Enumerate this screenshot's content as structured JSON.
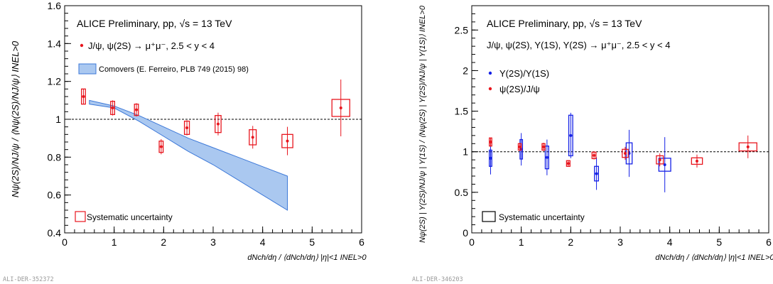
{
  "panels": [
    {
      "id": "left",
      "header": "ALICE Preliminary, pp, √s = 13 TeV",
      "process": "J/ψ, ψ(2S) → μ⁺μ⁻, 2.5 < y < 4",
      "ylabel": "Nψ(2S)/NJ/ψ / ⟨Nψ(2S)/NJ/ψ⟩ INEL>0",
      "xlabel": "dNch/dη / ⟨dNch/dη⟩ |η|<1 INEL>0",
      "legend_syst": "Systematic uncertainty",
      "legend_model": "Comovers (E. Ferreiro, PLB 749 (2015) 98)",
      "watermark": "ALI-DER-352372",
      "series_label": "J/ψ, ψ(2S) → μ⁺μ⁻, 2.5 < y < 4"
    },
    {
      "id": "right",
      "header": "ALICE Preliminary, pp, √s = 13 TeV",
      "process": "J/ψ, ψ(2S), Υ(1S), Υ(2S) → μ⁺μ⁻, 2.5 < y < 4",
      "ylabel": "Nψ(2S) | Υ(2S)/NJ/ψ | Υ(1S) / ⟨Nψ(2S) | Υ(2S)/NJ/ψ | Υ(1S)⟩ INEL>0",
      "xlabel": "dNch/dη / ⟨dNch/dη⟩ |η|<1 INEL>0",
      "legend_syst": "Systematic uncertainty",
      "legend_series": [
        "Υ(2S)/Υ(1S)",
        "ψ(2S)/J/ψ"
      ],
      "watermark": "ALI-DER-346203"
    }
  ],
  "chart_data": [
    {
      "type": "scatter",
      "xlim": [
        0,
        6
      ],
      "ylim": [
        0.4,
        1.6
      ],
      "xticks": [
        0,
        1,
        2,
        3,
        4,
        5,
        6
      ],
      "yticks": [
        0.4,
        0.6,
        0.8,
        1,
        1.2,
        1.4,
        1.6
      ],
      "reference_line": 1,
      "series": [
        {
          "name": "J/ψ, ψ(2S) → μ⁺μ⁻, 2.5 < y < 4",
          "color": "#e8161e",
          "points": [
            {
              "x": 0.38,
              "y": 1.12,
              "stat": 0.04,
              "sys": 0.04,
              "bw": 0.08
            },
            {
              "x": 0.97,
              "y": 1.06,
              "stat": 0.04,
              "sys": 0.035,
              "bw": 0.08
            },
            {
              "x": 1.45,
              "y": 1.05,
              "stat": 0.035,
              "sys": 0.03,
              "bw": 0.08
            },
            {
              "x": 1.95,
              "y": 0.855,
              "stat": 0.04,
              "sys": 0.03,
              "bw": 0.08
            },
            {
              "x": 2.47,
              "y": 0.955,
              "stat": 0.04,
              "sys": 0.035,
              "bw": 0.1
            },
            {
              "x": 3.1,
              "y": 0.975,
              "stat": 0.06,
              "sys": 0.045,
              "bw": 0.12
            },
            {
              "x": 3.8,
              "y": 0.905,
              "stat": 0.06,
              "sys": 0.04,
              "bw": 0.14
            },
            {
              "x": 4.5,
              "y": 0.885,
              "stat": 0.075,
              "sys": 0.035,
              "bw": 0.22
            },
            {
              "x": 5.58,
              "y": 1.06,
              "stat": 0.15,
              "sys": 0.045,
              "bw": 0.36
            }
          ]
        }
      ],
      "band": {
        "name": "Comovers (E. Ferreiro, PLB 749 (2015) 98)",
        "color": "#aac8f0",
        "edge": "#3c78d8",
        "x": [
          0.5,
          1.0,
          1.5,
          2.0,
          2.5,
          3.0,
          3.5,
          4.0,
          4.5
        ],
        "upper": [
          1.1,
          1.07,
          1.02,
          0.96,
          0.9,
          0.85,
          0.8,
          0.75,
          0.7
        ],
        "lower": [
          1.08,
          1.06,
          0.99,
          0.91,
          0.83,
          0.76,
          0.68,
          0.6,
          0.52
        ]
      }
    },
    {
      "type": "scatter",
      "xlim": [
        0,
        6
      ],
      "ylim": [
        0,
        2.8
      ],
      "xticks": [
        0,
        1,
        2,
        3,
        4,
        5,
        6
      ],
      "yticks": [
        0,
        0.5,
        1,
        1.5,
        2,
        2.5
      ],
      "reference_line": 1,
      "series": [
        {
          "name": "Υ(2S)/Υ(1S)",
          "color": "#1420e6",
          "points": [
            {
              "x": 0.38,
              "y": 0.92,
              "stat": 0.2,
              "sys": 0.1,
              "bw": 0.05
            },
            {
              "x": 1.0,
              "y": 1.03,
              "stat": 0.2,
              "sys": 0.12,
              "bw": 0.05
            },
            {
              "x": 1.52,
              "y": 0.93,
              "stat": 0.22,
              "sys": 0.14,
              "bw": 0.07
            },
            {
              "x": 2.0,
              "y": 1.2,
              "stat": 0.28,
              "sys": 0.25,
              "bw": 0.08
            },
            {
              "x": 2.52,
              "y": 0.73,
              "stat": 0.2,
              "sys": 0.09,
              "bw": 0.08
            },
            {
              "x": 3.18,
              "y": 0.98,
              "stat": 0.29,
              "sys": 0.13,
              "bw": 0.12
            },
            {
              "x": 3.9,
              "y": 0.84,
              "stat": 0.34,
              "sys": 0.08,
              "bw": 0.24
            }
          ]
        },
        {
          "name": "ψ(2S)/J/ψ",
          "color": "#e8161e",
          "points": [
            {
              "x": 0.38,
              "y": 1.12,
              "stat": 0.05,
              "sys": 0.05,
              "bw": 0.05
            },
            {
              "x": 0.97,
              "y": 1.06,
              "stat": 0.05,
              "sys": 0.04,
              "bw": 0.06
            },
            {
              "x": 1.45,
              "y": 1.06,
              "stat": 0.05,
              "sys": 0.04,
              "bw": 0.06
            },
            {
              "x": 1.95,
              "y": 0.855,
              "stat": 0.04,
              "sys": 0.035,
              "bw": 0.07
            },
            {
              "x": 2.47,
              "y": 0.955,
              "stat": 0.05,
              "sys": 0.04,
              "bw": 0.08
            },
            {
              "x": 3.1,
              "y": 0.98,
              "stat": 0.08,
              "sys": 0.05,
              "bw": 0.12
            },
            {
              "x": 3.8,
              "y": 0.9,
              "stat": 0.08,
              "sys": 0.05,
              "bw": 0.14
            },
            {
              "x": 4.55,
              "y": 0.885,
              "stat": 0.08,
              "sys": 0.04,
              "bw": 0.22
            },
            {
              "x": 5.58,
              "y": 1.06,
              "stat": 0.14,
              "sys": 0.05,
              "bw": 0.36
            }
          ]
        }
      ]
    }
  ]
}
